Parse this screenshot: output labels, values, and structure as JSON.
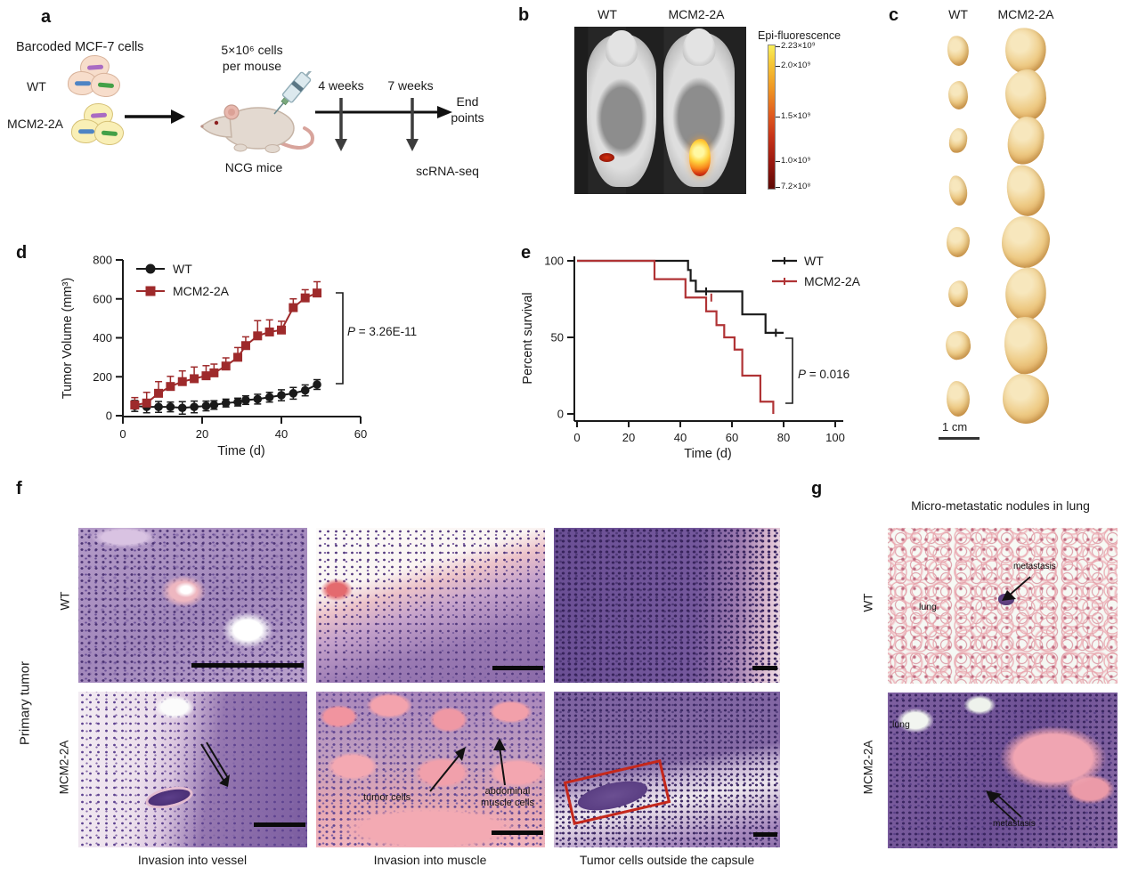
{
  "figure_type": "scientific-figure",
  "panel_a": {
    "label": "a",
    "cells_title": "Barcoded MCF-7 cells",
    "wt_label": "WT",
    "mcm_label": "MCM2-2A",
    "injection_line1": "5×10⁶ cells",
    "injection_line2": "per mouse",
    "mouse_label": "NCG mice",
    "timepoint_1": "4 weeks",
    "timepoint_2": "7 weeks",
    "scrna_label": "scRNA-seq",
    "endpoint_label": "End points"
  },
  "panel_b": {
    "label": "b",
    "col_wt": "WT",
    "col_mcm": "MCM2-2A",
    "colorbar_title": "Epi-fluorescence",
    "colorbar_ticks": [
      "2.23×10⁹",
      "2.0×10⁹",
      "1.5×10⁹",
      "1.0×10⁹",
      "7.2×10⁸"
    ]
  },
  "panel_c": {
    "label": "c",
    "col_wt": "WT",
    "col_mcm": "MCM2-2A",
    "num_tumor_pairs": 8,
    "scale_label": "1 cm"
  },
  "panel_d_label": "d",
  "panel_e_label": "e",
  "panel_f": {
    "label": "f",
    "side_label": "Primary tumor",
    "row_wt": "WT",
    "row_mcm": "MCM2-2A",
    "captions": [
      "Invasion into vessel",
      "Invasion into muscle",
      "Tumor cells outside the capsule"
    ],
    "ann_tumor_cells": "tumor cells",
    "ann_abdominal_1": "abdominal",
    "ann_abdominal_2": "muscle cells"
  },
  "panel_g": {
    "label": "g",
    "title": "Micro-metastatic nodules in lung",
    "row_wt": "WT",
    "row_mcm": "MCM2-2A",
    "ann_lung": "lung",
    "ann_metastasis": "metastasis"
  },
  "chart_data": [
    {
      "panel": "d",
      "type": "line",
      "xlabel": "Time (d)",
      "ylabel": "Tumor Volume (mm³)",
      "xlim": [
        0,
        60
      ],
      "ylim": [
        0,
        800
      ],
      "xticks": [
        0,
        20,
        40,
        60
      ],
      "yticks": [
        0,
        200,
        400,
        600,
        800
      ],
      "x": [
        3,
        6,
        9,
        12,
        15,
        18,
        21,
        23,
        26,
        29,
        31,
        34,
        37,
        40,
        43,
        46,
        49
      ],
      "series": [
        {
          "name": "WT",
          "color": "#1a1a1a",
          "marker": "circle",
          "values": [
            50,
            45,
            45,
            45,
            40,
            45,
            50,
            55,
            65,
            70,
            80,
            85,
            95,
            105,
            115,
            130,
            160
          ],
          "err": [
            28,
            30,
            28,
            25,
            32,
            30,
            25,
            22,
            20,
            20,
            22,
            25,
            25,
            28,
            30,
            28,
            25
          ]
        },
        {
          "name": "MCM2-2A",
          "color": "#9e2a2b",
          "marker": "square",
          "values": [
            55,
            65,
            115,
            150,
            175,
            190,
            205,
            220,
            255,
            300,
            360,
            410,
            430,
            440,
            555,
            605,
            630
          ],
          "err": [
            38,
            55,
            60,
            52,
            55,
            60,
            52,
            45,
            42,
            50,
            45,
            78,
            62,
            45,
            45,
            42,
            58
          ]
        }
      ],
      "p_label": "P = 3.26E-11",
      "legend_position": "top-left",
      "grid": false
    },
    {
      "panel": "e",
      "type": "step",
      "xlabel": "Time (d)",
      "ylabel": "Percent survival",
      "xlim": [
        0,
        100
      ],
      "ylim": [
        0,
        100
      ],
      "xticks": [
        0,
        20,
        40,
        60,
        80,
        100
      ],
      "yticks": [
        0,
        50,
        100
      ],
      "series": [
        {
          "name": "WT",
          "color": "#1a1a1a",
          "points": [
            [
              0,
              100
            ],
            [
              43,
              100
            ],
            [
              43,
              94
            ],
            [
              44,
              94
            ],
            [
              44,
              87
            ],
            [
              46,
              87
            ],
            [
              46,
              80
            ],
            [
              64,
              80
            ],
            [
              64,
              65
            ],
            [
              73,
              65
            ],
            [
              73,
              53
            ],
            [
              80,
              53
            ]
          ],
          "censors": [
            [
              50,
              80
            ],
            [
              77,
              53
            ]
          ]
        },
        {
          "name": "MCM2-2A",
          "color": "#b03335",
          "points": [
            [
              0,
              100
            ],
            [
              30,
              100
            ],
            [
              30,
              88
            ],
            [
              42,
              88
            ],
            [
              42,
              76
            ],
            [
              50,
              76
            ],
            [
              50,
              67
            ],
            [
              54,
              67
            ],
            [
              54,
              58
            ],
            [
              57,
              58
            ],
            [
              57,
              50
            ],
            [
              61,
              50
            ],
            [
              61,
              42
            ],
            [
              64,
              42
            ],
            [
              64,
              25
            ],
            [
              71,
              25
            ],
            [
              71,
              8
            ],
            [
              76,
              8
            ],
            [
              76,
              0
            ]
          ],
          "censors": [
            [
              52,
              76
            ]
          ]
        }
      ],
      "p_label": "P = 0.016",
      "legend_position": "top-right",
      "grid": false
    }
  ]
}
